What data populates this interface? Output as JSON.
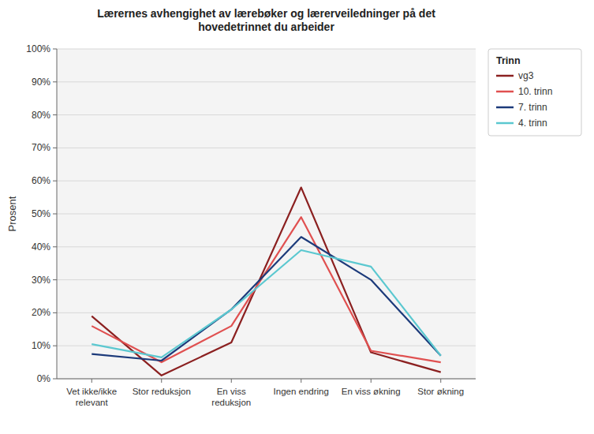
{
  "chart_data": {
    "type": "line",
    "title": "Lærernes avhengighet av lærebøker og lærerveiledninger på det\nhovedetrinnet du arbeider",
    "categories": [
      "Vet ikke/ikke\nrelevant",
      "Stor reduksjon",
      "En viss\nreduksjon",
      "Ingen endring",
      "En viss økning",
      "Stor økning"
    ],
    "series": [
      {
        "name": "vg3",
        "color": "#8b2020",
        "values": [
          19.0,
          1.0,
          11.0,
          58.0,
          8.0,
          2.0
        ]
      },
      {
        "name": "10. trinn",
        "color": "#e05050",
        "values": [
          16.0,
          5.0,
          16.0,
          49.0,
          8.5,
          5.0
        ]
      },
      {
        "name": "7. trinn",
        "color": "#1c3a7a",
        "values": [
          7.5,
          5.5,
          21.0,
          43.0,
          30.0,
          7.0
        ]
      },
      {
        "name": "4. trinn",
        "color": "#5bc8d0",
        "values": [
          10.5,
          6.5,
          21.0,
          39.0,
          34.0,
          7.0
        ]
      }
    ],
    "ylabel": "Prosent",
    "legend_title": "Trinn",
    "ylim": [
      0,
      100
    ],
    "yticks": [
      {
        "value": 0,
        "label": "0%"
      },
      {
        "value": 10,
        "label": "10%"
      },
      {
        "value": 20,
        "label": "20%"
      },
      {
        "value": 30,
        "label": "30%"
      },
      {
        "value": 40,
        "label": "40%"
      },
      {
        "value": 50,
        "label": "50%"
      },
      {
        "value": 60,
        "label": "60%"
      },
      {
        "value": 70,
        "label": "70%"
      },
      {
        "value": 80,
        "label": "80%"
      },
      {
        "value": 90,
        "label": "90%"
      },
      {
        "value": 100,
        "label": "100%"
      }
    ],
    "grid": true,
    "legend": "right"
  }
}
